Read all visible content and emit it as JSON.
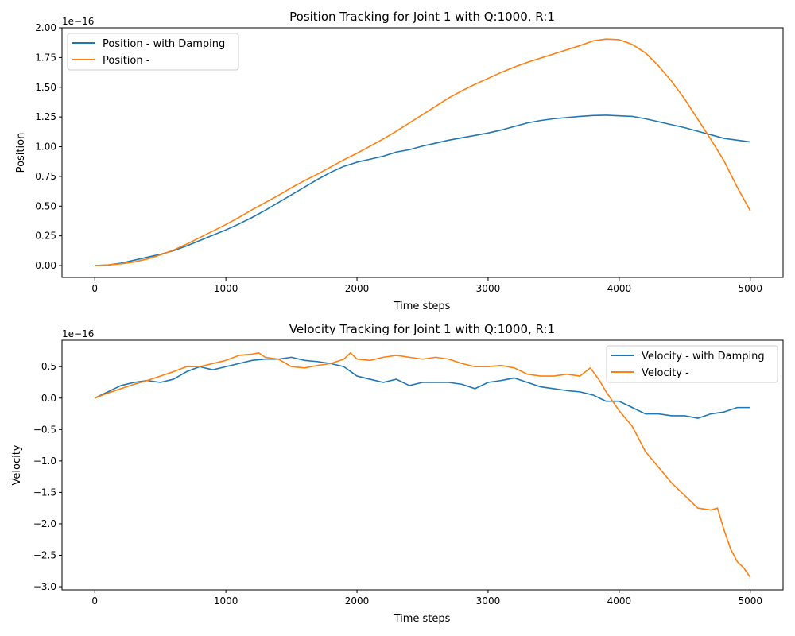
{
  "chart_data": [
    {
      "type": "line",
      "title": "Position Tracking for Joint 1 with Q:1000, R:1",
      "xlabel": "Time steps",
      "ylabel": "Position",
      "offset_text": "1e−16",
      "xlim": [
        -250,
        5250
      ],
      "ylim": [
        -0.1,
        2.0
      ],
      "xticks": [
        0,
        1000,
        2000,
        3000,
        4000,
        5000
      ],
      "xtick_labels": [
        "0",
        "1000",
        "2000",
        "3000",
        "4000",
        "5000"
      ],
      "yticks": [
        0.0,
        0.25,
        0.5,
        0.75,
        1.0,
        1.25,
        1.5,
        1.75,
        2.0
      ],
      "ytick_labels": [
        "0.00",
        "0.25",
        "0.50",
        "0.75",
        "1.00",
        "1.25",
        "1.50",
        "1.75",
        "2.00"
      ],
      "grid": false,
      "legend": "top-left",
      "series": [
        {
          "name": "Position - with Damping",
          "color": "#1f77b4",
          "x": [
            0,
            100,
            200,
            300,
            400,
            500,
            600,
            700,
            800,
            900,
            1000,
            1100,
            1200,
            1300,
            1400,
            1500,
            1600,
            1700,
            1800,
            1900,
            2000,
            2100,
            2200,
            2300,
            2400,
            2500,
            2600,
            2700,
            2800,
            2900,
            3000,
            3100,
            3200,
            3300,
            3400,
            3500,
            3600,
            3700,
            3800,
            3900,
            4000,
            4100,
            4200,
            4300,
            4400,
            4500,
            4600,
            4700,
            4800,
            4900,
            5000
          ],
          "y": [
            0.0,
            0.005,
            0.02,
            0.045,
            0.07,
            0.095,
            0.125,
            0.165,
            0.21,
            0.255,
            0.3,
            0.35,
            0.405,
            0.465,
            0.53,
            0.595,
            0.66,
            0.725,
            0.785,
            0.835,
            0.87,
            0.895,
            0.92,
            0.955,
            0.975,
            1.005,
            1.03,
            1.055,
            1.075,
            1.095,
            1.115,
            1.14,
            1.17,
            1.2,
            1.22,
            1.235,
            1.245,
            1.255,
            1.262,
            1.265,
            1.26,
            1.255,
            1.235,
            1.21,
            1.185,
            1.16,
            1.13,
            1.1,
            1.07,
            1.055,
            1.04
          ]
        },
        {
          "name": "Position -",
          "color": "#ff7f0e",
          "x": [
            0,
            100,
            200,
            300,
            400,
            500,
            600,
            700,
            800,
            900,
            1000,
            1100,
            1200,
            1300,
            1400,
            1500,
            1600,
            1700,
            1800,
            1900,
            2000,
            2100,
            2200,
            2300,
            2400,
            2500,
            2600,
            2700,
            2800,
            2900,
            3000,
            3100,
            3200,
            3300,
            3400,
            3500,
            3600,
            3700,
            3800,
            3900,
            4000,
            4100,
            4200,
            4300,
            4400,
            4500,
            4600,
            4700,
            4800,
            4900,
            5000
          ],
          "y": [
            0.0,
            0.005,
            0.015,
            0.03,
            0.055,
            0.09,
            0.13,
            0.18,
            0.235,
            0.29,
            0.345,
            0.405,
            0.47,
            0.53,
            0.59,
            0.655,
            0.715,
            0.77,
            0.83,
            0.89,
            0.945,
            1.005,
            1.065,
            1.13,
            1.2,
            1.27,
            1.34,
            1.41,
            1.47,
            1.525,
            1.575,
            1.625,
            1.67,
            1.71,
            1.745,
            1.78,
            1.815,
            1.85,
            1.89,
            1.905,
            1.9,
            1.86,
            1.79,
            1.68,
            1.55,
            1.4,
            1.23,
            1.06,
            0.88,
            0.66,
            0.46
          ]
        }
      ]
    },
    {
      "type": "line",
      "title": "Velocity Tracking for Joint 1 with Q:1000, R:1",
      "xlabel": "Time steps",
      "ylabel": "Velocity",
      "offset_text": "1e−16",
      "xlim": [
        -250,
        5250
      ],
      "ylim": [
        -3.05,
        0.92
      ],
      "xticks": [
        0,
        1000,
        2000,
        3000,
        4000,
        5000
      ],
      "xtick_labels": [
        "0",
        "1000",
        "2000",
        "3000",
        "4000",
        "5000"
      ],
      "yticks": [
        0.5,
        0.0,
        -0.5,
        -1.0,
        -1.5,
        -2.0,
        -2.5,
        -3.0
      ],
      "ytick_labels": [
        "0.5",
        "0.0",
        "−0.5",
        "−1.0",
        "−1.5",
        "−2.0",
        "−2.5",
        "−3.0"
      ],
      "grid": false,
      "legend": "top-right",
      "series": [
        {
          "name": "Velocity - with Damping",
          "color": "#1f77b4",
          "x": [
            0,
            100,
            200,
            300,
            400,
            500,
            600,
            700,
            800,
            900,
            1000,
            1100,
            1200,
            1300,
            1400,
            1500,
            1600,
            1700,
            1800,
            1900,
            2000,
            2100,
            2200,
            2300,
            2400,
            2500,
            2600,
            2700,
            2800,
            2900,
            3000,
            3100,
            3200,
            3300,
            3400,
            3500,
            3600,
            3700,
            3800,
            3900,
            4000,
            4100,
            4200,
            4300,
            4400,
            4500,
            4600,
            4700,
            4800,
            4900,
            5000
          ],
          "y": [
            0.0,
            0.1,
            0.2,
            0.25,
            0.28,
            0.25,
            0.3,
            0.42,
            0.5,
            0.45,
            0.5,
            0.55,
            0.6,
            0.62,
            0.62,
            0.65,
            0.6,
            0.58,
            0.55,
            0.5,
            0.35,
            0.3,
            0.25,
            0.3,
            0.2,
            0.25,
            0.25,
            0.25,
            0.22,
            0.15,
            0.25,
            0.28,
            0.32,
            0.25,
            0.18,
            0.15,
            0.12,
            0.1,
            0.05,
            -0.05,
            -0.05,
            -0.15,
            -0.25,
            -0.25,
            -0.28,
            -0.28,
            -0.32,
            -0.25,
            -0.22,
            -0.15,
            -0.15
          ]
        },
        {
          "name": "Velocity -",
          "color": "#ff7f0e",
          "x": [
            0,
            100,
            200,
            300,
            400,
            500,
            600,
            700,
            800,
            900,
            1000,
            1100,
            1200,
            1250,
            1300,
            1400,
            1500,
            1600,
            1700,
            1800,
            1900,
            1950,
            2000,
            2100,
            2200,
            2300,
            2400,
            2500,
            2600,
            2700,
            2800,
            2900,
            3000,
            3100,
            3200,
            3300,
            3400,
            3500,
            3600,
            3700,
            3780,
            3850,
            3900,
            4000,
            4100,
            4200,
            4300,
            4400,
            4500,
            4600,
            4700,
            4750,
            4800,
            4850,
            4900,
            4950,
            5000
          ],
          "y": [
            0.0,
            0.08,
            0.15,
            0.22,
            0.28,
            0.35,
            0.42,
            0.5,
            0.5,
            0.55,
            0.6,
            0.68,
            0.7,
            0.72,
            0.65,
            0.62,
            0.5,
            0.48,
            0.52,
            0.55,
            0.62,
            0.72,
            0.62,
            0.6,
            0.65,
            0.68,
            0.65,
            0.62,
            0.65,
            0.62,
            0.55,
            0.5,
            0.5,
            0.52,
            0.48,
            0.38,
            0.35,
            0.35,
            0.38,
            0.35,
            0.48,
            0.28,
            0.1,
            -0.2,
            -0.45,
            -0.85,
            -1.1,
            -1.35,
            -1.55,
            -1.75,
            -1.78,
            -1.75,
            -2.1,
            -2.4,
            -2.6,
            -2.7,
            -2.85
          ]
        }
      ]
    }
  ]
}
